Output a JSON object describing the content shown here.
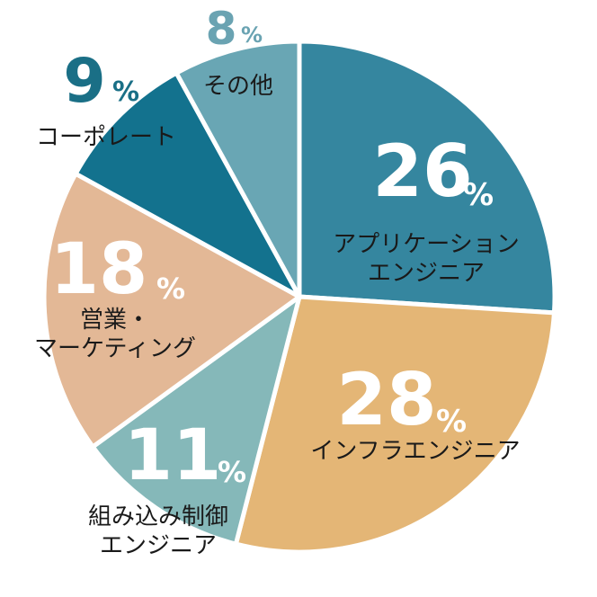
{
  "chart_data": {
    "type": "pie",
    "title": "",
    "slices": [
      {
        "label_lines": [
          "アプリケーション",
          "エンジニア"
        ],
        "value": 26,
        "color": "#35869f",
        "label_color": "#ffffff"
      },
      {
        "label_lines": [
          "インフラエンジニア"
        ],
        "value": 28,
        "color": "#e4b676",
        "label_color": "#ffffff"
      },
      {
        "label_lines": [
          "組み込み制御",
          "エンジニア"
        ],
        "value": 11,
        "color": "#85b8b9",
        "label_color": "#ffffff"
      },
      {
        "label_lines": [
          "営業・",
          "マーケティング"
        ],
        "value": 18,
        "color": "#e3b896",
        "label_color": "#ffffff"
      },
      {
        "label_lines": [
          "コーポレート"
        ],
        "value": 9,
        "color": "#13728e",
        "label_color": "#1a6f86"
      },
      {
        "label_lines": [
          "その他"
        ],
        "value": 8,
        "color": "#69a6b4",
        "label_color": "#6aa3b2"
      }
    ],
    "unit": "%"
  }
}
